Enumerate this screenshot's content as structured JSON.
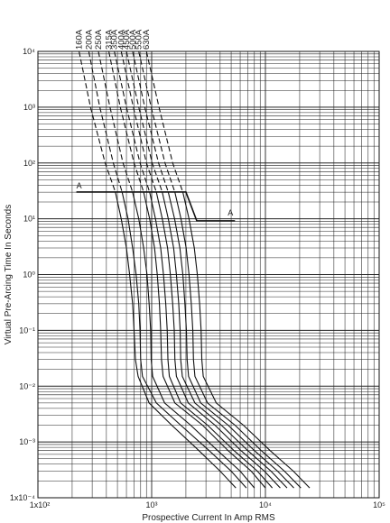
{
  "chart_data": {
    "type": "line",
    "title": "",
    "xlabel": "Prospective Current In Amp RMS",
    "ylabel": "Virtual Pre-Arcing Time In Seconds",
    "xscale": "log",
    "yscale": "log",
    "xlim": [
      100,
      100000
    ],
    "ylim": [
      0.0001,
      10000
    ],
    "grid": true,
    "legend": "none",
    "x_ticks": [
      {
        "value": 100,
        "label": "1x10²"
      },
      {
        "value": 1000,
        "label": "10³"
      },
      {
        "value": 10000,
        "label": "10⁴"
      },
      {
        "value": 100000,
        "label": "10⁵"
      }
    ],
    "y_ticks": [
      {
        "value": 10000,
        "label": "10⁴"
      },
      {
        "value": 1000,
        "label": "10³"
      },
      {
        "value": 100,
        "label": "10²"
      },
      {
        "value": 10,
        "label": "10¹"
      },
      {
        "value": 1,
        "label": "10⁰"
      },
      {
        "value": 0.1,
        "label": "10⁻¹"
      },
      {
        "value": 0.01,
        "label": "10⁻²"
      },
      {
        "value": 0.001,
        "label": "10⁻³"
      },
      {
        "value": 0.0001,
        "label": "1x10⁻⁴"
      }
    ],
    "series": [
      {
        "name": "160A",
        "dashed_above_s": 30,
        "values": [
          [
            230,
            10000
          ],
          [
            290,
            1000
          ],
          [
            390,
            100
          ],
          [
            480,
            30
          ],
          [
            540,
            10
          ],
          [
            600,
            3
          ],
          [
            640,
            1
          ],
          [
            680,
            0.3
          ],
          [
            700,
            0.1
          ],
          [
            720,
            0.03
          ],
          [
            760,
            0.015
          ],
          [
            950,
            0.005
          ],
          [
            1500,
            0.002
          ],
          [
            2600,
            0.0007
          ],
          [
            4000,
            0.0003
          ],
          [
            5500,
            0.00015
          ]
        ]
      },
      {
        "name": "200A",
        "dashed_above_s": 30,
        "values": [
          [
            280,
            10000
          ],
          [
            350,
            1000
          ],
          [
            460,
            100
          ],
          [
            550,
            30
          ],
          [
            620,
            10
          ],
          [
            680,
            3
          ],
          [
            730,
            1
          ],
          [
            770,
            0.3
          ],
          [
            790,
            0.1
          ],
          [
            800,
            0.03
          ],
          [
            830,
            0.015
          ],
          [
            1100,
            0.005
          ],
          [
            1800,
            0.002
          ],
          [
            3200,
            0.0007
          ],
          [
            5000,
            0.0003
          ],
          [
            6800,
            0.00015
          ]
        ]
      },
      {
        "name": "250A",
        "dashed_above_s": 30,
        "values": [
          [
            340,
            10000
          ],
          [
            430,
            1000
          ],
          [
            560,
            100
          ],
          [
            680,
            30
          ],
          [
            770,
            10
          ],
          [
            850,
            3
          ],
          [
            910,
            1
          ],
          [
            950,
            0.3
          ],
          [
            980,
            0.1
          ],
          [
            990,
            0.03
          ],
          [
            1020,
            0.015
          ],
          [
            1300,
            0.005
          ],
          [
            2200,
            0.002
          ],
          [
            3800,
            0.0007
          ],
          [
            6000,
            0.0003
          ],
          [
            8000,
            0.00015
          ]
        ]
      },
      {
        "name": "315A",
        "dashed_above_s": 30,
        "values": [
          [
            420,
            10000
          ],
          [
            530,
            1000
          ],
          [
            700,
            100
          ],
          [
            850,
            30
          ],
          [
            960,
            10
          ],
          [
            1060,
            3
          ],
          [
            1120,
            1
          ],
          [
            1170,
            0.3
          ],
          [
            1200,
            0.1
          ],
          [
            1220,
            0.03
          ],
          [
            1260,
            0.015
          ],
          [
            1600,
            0.005
          ],
          [
            2800,
            0.002
          ],
          [
            4700,
            0.0007
          ],
          [
            7500,
            0.0003
          ],
          [
            10000,
            0.00015
          ]
        ]
      },
      {
        "name": "350A",
        "dashed_above_s": 30,
        "values": [
          [
            470,
            10000
          ],
          [
            600,
            1000
          ],
          [
            790,
            100
          ],
          [
            960,
            30
          ],
          [
            1080,
            10
          ],
          [
            1200,
            3
          ],
          [
            1270,
            1
          ],
          [
            1330,
            0.3
          ],
          [
            1370,
            0.1
          ],
          [
            1390,
            0.03
          ],
          [
            1430,
            0.015
          ],
          [
            1800,
            0.005
          ],
          [
            3100,
            0.002
          ],
          [
            5300,
            0.0007
          ],
          [
            8500,
            0.0003
          ],
          [
            11500,
            0.00015
          ]
        ]
      },
      {
        "name": "400A",
        "dashed_above_s": 30,
        "values": [
          [
            540,
            10000
          ],
          [
            690,
            1000
          ],
          [
            900,
            100
          ],
          [
            1100,
            30
          ],
          [
            1240,
            10
          ],
          [
            1380,
            3
          ],
          [
            1460,
            1
          ],
          [
            1530,
            0.3
          ],
          [
            1580,
            0.1
          ],
          [
            1600,
            0.03
          ],
          [
            1650,
            0.015
          ],
          [
            2100,
            0.005
          ],
          [
            3600,
            0.002
          ],
          [
            6100,
            0.0007
          ],
          [
            9800,
            0.0003
          ],
          [
            13500,
            0.00015
          ]
        ]
      },
      {
        "name": "450A",
        "dashed_above_s": 30,
        "values": [
          [
            600,
            10000
          ],
          [
            770,
            1000
          ],
          [
            1010,
            100
          ],
          [
            1240,
            30
          ],
          [
            1400,
            10
          ],
          [
            1560,
            3
          ],
          [
            1650,
            1
          ],
          [
            1730,
            0.3
          ],
          [
            1780,
            0.1
          ],
          [
            1800,
            0.03
          ],
          [
            1860,
            0.015
          ],
          [
            2400,
            0.005
          ],
          [
            4100,
            0.002
          ],
          [
            7000,
            0.0007
          ],
          [
            11200,
            0.0003
          ],
          [
            15500,
            0.00015
          ]
        ]
      },
      {
        "name": "500A",
        "dashed_above_s": 30,
        "values": [
          [
            680,
            10000
          ],
          [
            870,
            1000
          ],
          [
            1150,
            100
          ],
          [
            1400,
            30
          ],
          [
            1590,
            10
          ],
          [
            1770,
            3
          ],
          [
            1880,
            1
          ],
          [
            1960,
            0.3
          ],
          [
            2020,
            0.1
          ],
          [
            2050,
            0.03
          ],
          [
            2110,
            0.015
          ],
          [
            2700,
            0.005
          ],
          [
            4700,
            0.002
          ],
          [
            8000,
            0.0007
          ],
          [
            12800,
            0.0003
          ],
          [
            17800,
            0.00015
          ]
        ]
      },
      {
        "name": "550A",
        "dashed_above_s": 30,
        "values": [
          [
            770,
            10000
          ],
          [
            990,
            1000
          ],
          [
            1310,
            100
          ],
          [
            1600,
            30
          ],
          [
            1810,
            10
          ],
          [
            2010,
            3
          ],
          [
            2130,
            1
          ],
          [
            2230,
            0.3
          ],
          [
            2300,
            0.1
          ],
          [
            2330,
            0.03
          ],
          [
            2400,
            0.015
          ],
          [
            3100,
            0.005
          ],
          [
            5400,
            0.002
          ],
          [
            9200,
            0.0007
          ],
          [
            14700,
            0.0003
          ],
          [
            20500,
            0.00015
          ]
        ]
      },
      {
        "name": "630A",
        "dashed_above_s": 30,
        "values": [
          [
            900,
            10000
          ],
          [
            1160,
            1000
          ],
          [
            1530,
            100
          ],
          [
            1880,
            30
          ],
          [
            2130,
            10
          ],
          [
            2370,
            3
          ],
          [
            2520,
            1
          ],
          [
            2640,
            0.3
          ],
          [
            2720,
            0.1
          ],
          [
            2760,
            0.03
          ],
          [
            2840,
            0.015
          ],
          [
            3700,
            0.005
          ],
          [
            6400,
            0.002
          ],
          [
            11000,
            0.0007
          ],
          [
            17600,
            0.0003
          ],
          [
            24500,
            0.00015
          ]
        ]
      }
    ],
    "annotations": [
      {
        "text": "A",
        "x": 230,
        "y": 35
      },
      {
        "text": "A",
        "x": 4500,
        "y": 11.5
      }
    ]
  }
}
